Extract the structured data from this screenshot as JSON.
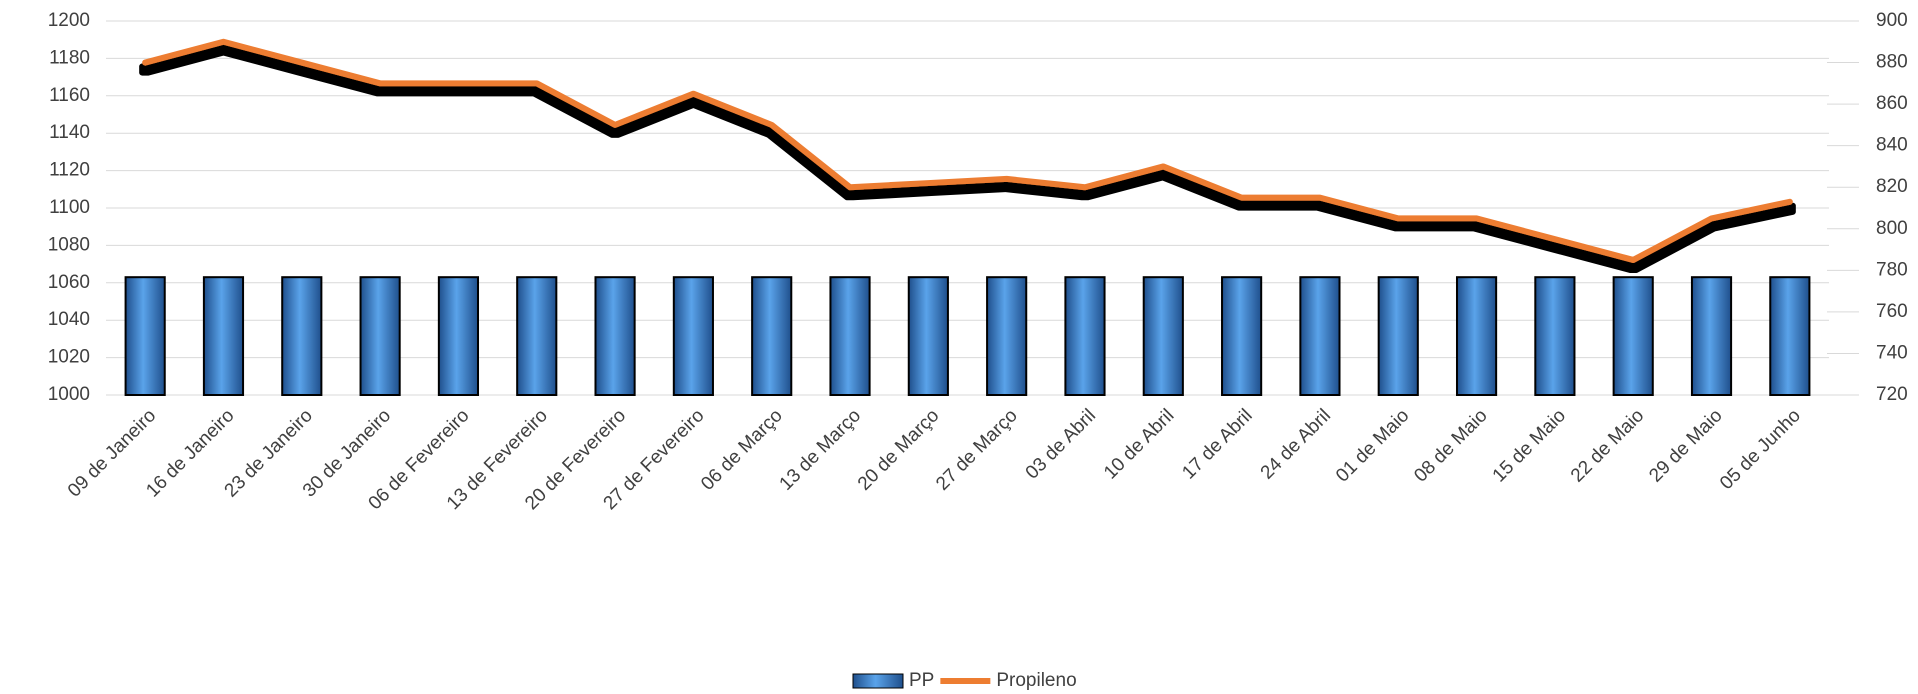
{
  "chart_data": {
    "type": "bar-line",
    "categories": [
      "09 de Janeiro",
      "16 de Janeiro",
      "23 de Janeiro",
      "30 de Janeiro",
      "06 de Fevereiro",
      "13 de Fevereiro",
      "20 de Fevereiro",
      "27 de Fevereiro",
      "06 de Março",
      "13 de Março",
      "20 de Março",
      "27 de Março",
      "03 de Abril",
      "10 de Abril",
      "17 de Abril",
      "24 de Abril",
      "01 de Maio",
      "08 de Maio",
      "15 de Maio",
      "22 de Maio",
      "29 de Maio",
      "05 de Junho"
    ],
    "series": [
      {
        "name": "PP",
        "type": "bar",
        "color": "#3a7bc8",
        "values": [
          1063,
          1063,
          1063,
          1063,
          1063,
          1063,
          1063,
          1063,
          1063,
          1063,
          1063,
          1063,
          1063,
          1063,
          1063,
          1063,
          1063,
          1063,
          1063,
          1063,
          1063,
          1063
        ]
      },
      {
        "name": "Propileno",
        "type": "line",
        "axis": "y2",
        "color": "#ed7d31",
        "values": [
          880,
          890,
          880,
          870,
          870,
          870,
          850,
          865,
          850,
          820,
          822,
          824,
          820,
          830,
          815,
          815,
          805,
          805,
          795,
          785,
          805,
          813
        ]
      }
    ],
    "ylim": [
      1000,
      1200
    ],
    "yticks": [
      1000,
      1020,
      1040,
      1060,
      1080,
      1100,
      1120,
      1140,
      1160,
      1180,
      1200
    ],
    "y2lim": [
      720,
      900
    ],
    "y2ticks": [
      720,
      740,
      760,
      780,
      800,
      820,
      840,
      860,
      880,
      900
    ],
    "grid": true,
    "legend": "bottom"
  }
}
